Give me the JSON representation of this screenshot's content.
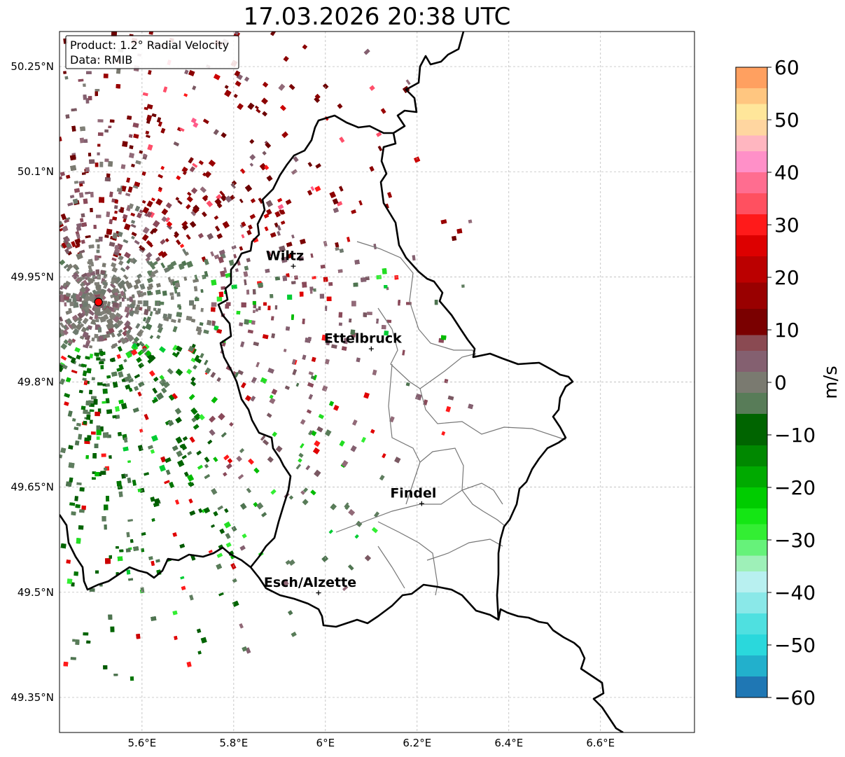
{
  "title": "17.03.2026 20:38 UTC",
  "info_box": {
    "line1": "Product: 1.2° Radial Velocity",
    "line2": "Data: RMIB"
  },
  "map": {
    "lon_range": [
      5.42,
      6.805
    ],
    "lat_range": [
      49.3,
      50.3
    ],
    "lon_ticks": [
      {
        "value": 5.6,
        "label": "5.6°E"
      },
      {
        "value": 5.8,
        "label": "5.8°E"
      },
      {
        "value": 6.0,
        "label": "6°E"
      },
      {
        "value": 6.2,
        "label": "6.2°E"
      },
      {
        "value": 6.4,
        "label": "6.4°E"
      },
      {
        "value": 6.6,
        "label": "6.6°E"
      }
    ],
    "lat_ticks": [
      {
        "value": 50.25,
        "label": "50.25°N"
      },
      {
        "value": 50.1,
        "label": "50.1°N"
      },
      {
        "value": 49.95,
        "label": "49.95°N"
      },
      {
        "value": 49.8,
        "label": "49.8°N"
      },
      {
        "value": 49.65,
        "label": "49.65°N"
      },
      {
        "value": 49.5,
        "label": "49.5°N"
      },
      {
        "value": 49.35,
        "label": "49.35°N"
      }
    ],
    "grid": true,
    "radar_site": {
      "lon": 5.505,
      "lat": 49.914
    },
    "cities": [
      {
        "name": "Wiltz",
        "lon": 5.93,
        "lat": 49.966
      },
      {
        "name": "Ettelbruck",
        "lon": 6.1,
        "lat": 49.848
      },
      {
        "name": "Findel",
        "lon": 6.21,
        "lat": 49.627
      },
      {
        "name": "Esch/Alzette",
        "lon": 5.985,
        "lat": 49.5
      }
    ]
  },
  "colorbar": {
    "unit": "m/s",
    "min": -60,
    "max": 60,
    "ticks": [
      {
        "value": 60,
        "label": "60"
      },
      {
        "value": 50,
        "label": "50"
      },
      {
        "value": 40,
        "label": "40"
      },
      {
        "value": 30,
        "label": "30"
      },
      {
        "value": 20,
        "label": "20"
      },
      {
        "value": 10,
        "label": "10"
      },
      {
        "value": 0,
        "label": "0"
      },
      {
        "value": -10,
        "label": "−10"
      },
      {
        "value": -20,
        "label": "−20"
      },
      {
        "value": -30,
        "label": "−30"
      },
      {
        "value": -40,
        "label": "−40"
      },
      {
        "value": -50,
        "label": "−50"
      },
      {
        "value": -60,
        "label": "−60"
      }
    ],
    "color_stops": [
      {
        "from": -60,
        "to": -56,
        "color": "#1f77b4"
      },
      {
        "from": -56,
        "to": -52,
        "color": "#22b0cc"
      },
      {
        "from": -52,
        "to": -48,
        "color": "#2ad8dc"
      },
      {
        "from": -48,
        "to": -44,
        "color": "#4fe0e0"
      },
      {
        "from": -44,
        "to": -40,
        "color": "#8ae8e8"
      },
      {
        "from": -40,
        "to": -36,
        "color": "#b8f0f0"
      },
      {
        "from": -36,
        "to": -33,
        "color": "#9ef0b8"
      },
      {
        "from": -33,
        "to": -30,
        "color": "#66f27a"
      },
      {
        "from": -30,
        "to": -27,
        "color": "#33ee33"
      },
      {
        "from": -27,
        "to": -24,
        "color": "#14e614"
      },
      {
        "from": -24,
        "to": -20,
        "color": "#00cc00"
      },
      {
        "from": -20,
        "to": -16,
        "color": "#00aa00"
      },
      {
        "from": -16,
        "to": -12,
        "color": "#008800"
      },
      {
        "from": -12,
        "to": -6,
        "color": "#006400"
      },
      {
        "from": -6,
        "to": -2,
        "color": "#587c58"
      },
      {
        "from": -2,
        "to": 2,
        "color": "#7a7a70"
      },
      {
        "from": 2,
        "to": 6,
        "color": "#846070"
      },
      {
        "from": 6,
        "to": 9,
        "color": "#8a4a52"
      },
      {
        "from": 9,
        "to": 14,
        "color": "#7a0000"
      },
      {
        "from": 14,
        "to": 19,
        "color": "#990000"
      },
      {
        "from": 19,
        "to": 24,
        "color": "#bb0000"
      },
      {
        "from": 24,
        "to": 28,
        "color": "#dd0000"
      },
      {
        "from": 28,
        "to": 32,
        "color": "#ff1a1a"
      },
      {
        "from": 32,
        "to": 36,
        "color": "#ff5060"
      },
      {
        "from": 36,
        "to": 40,
        "color": "#ff6d90"
      },
      {
        "from": 40,
        "to": 44,
        "color": "#ff90c8"
      },
      {
        "from": 44,
        "to": 47,
        "color": "#ffb6c0"
      },
      {
        "from": 47,
        "to": 50,
        "color": "#ffd6a0"
      },
      {
        "from": 50,
        "to": 53,
        "color": "#ffe69a"
      },
      {
        "from": 53,
        "to": 56,
        "color": "#ffc680"
      },
      {
        "from": 56,
        "to": 60,
        "color": "#ffa060"
      }
    ]
  },
  "colors": {
    "border": "#000000",
    "canton": "#777777",
    "grid": "#b0b0b0",
    "radar_marker": "#ff0000"
  }
}
